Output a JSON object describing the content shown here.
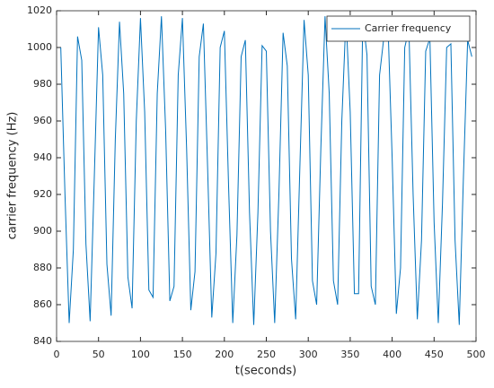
{
  "chart_data": {
    "type": "line",
    "xlabel": "t(seconds)",
    "ylabel": "carrier frequency (Hz)",
    "x": [
      5,
      10,
      15,
      20,
      25,
      30,
      35,
      40,
      45,
      50,
      55,
      60,
      65,
      70,
      75,
      80,
      85,
      90,
      95,
      100,
      105,
      110,
      115,
      120,
      125,
      130,
      135,
      140,
      145,
      150,
      155,
      160,
      165,
      170,
      175,
      180,
      185,
      190,
      195,
      200,
      205,
      210,
      215,
      220,
      225,
      230,
      235,
      240,
      245,
      250,
      255,
      260,
      265,
      270,
      275,
      280,
      285,
      290,
      295,
      300,
      305,
      310,
      315,
      320,
      325,
      330,
      335,
      340,
      345,
      350,
      355,
      360,
      365,
      370,
      375,
      380,
      385,
      390,
      395,
      400,
      405,
      410,
      415,
      420,
      425,
      430,
      435,
      440,
      445,
      450,
      455,
      460,
      465,
      470,
      475,
      480,
      485,
      490,
      495
    ],
    "series": [
      {
        "name": "Carrier frequency",
        "color": "#0072bd",
        "values": [
          1000,
          920,
          850,
          890,
          1006,
          993,
          893,
          851,
          930,
          1011,
          985,
          882,
          854,
          950,
          1014,
          975,
          875,
          858,
          960,
          1016,
          965,
          868,
          864,
          975,
          1017,
          955,
          862,
          870,
          985,
          1016,
          945,
          857,
          878,
          995,
          1013,
          935,
          853,
          888,
          1000,
          1009,
          925,
          850,
          898,
          995,
          1004,
          910,
          849,
          910,
          1001,
          998,
          900,
          850,
          920,
          1008,
          990,
          885,
          852,
          935,
          1015,
          985,
          873,
          860,
          945,
          1017,
          975,
          873,
          860,
          960,
          1017,
          965,
          866,
          866,
          1016,
          996,
          870,
          860,
          985,
          1005,
          1013,
          940,
          855,
          880,
          1000,
          1010,
          920,
          852,
          895,
          998,
          1005,
          905,
          850,
          915,
          1000,
          1002,
          895,
          849,
          930,
          1004,
          995
        ]
      }
    ],
    "xlim": [
      0,
      500
    ],
    "xticks": [
      0,
      50,
      100,
      150,
      200,
      250,
      300,
      350,
      400,
      450,
      500
    ],
    "ylim": [
      840,
      1020
    ],
    "yticks": [
      840,
      860,
      880,
      900,
      920,
      940,
      960,
      980,
      1000,
      1020
    ],
    "legend": "upper right",
    "grid": false
  }
}
